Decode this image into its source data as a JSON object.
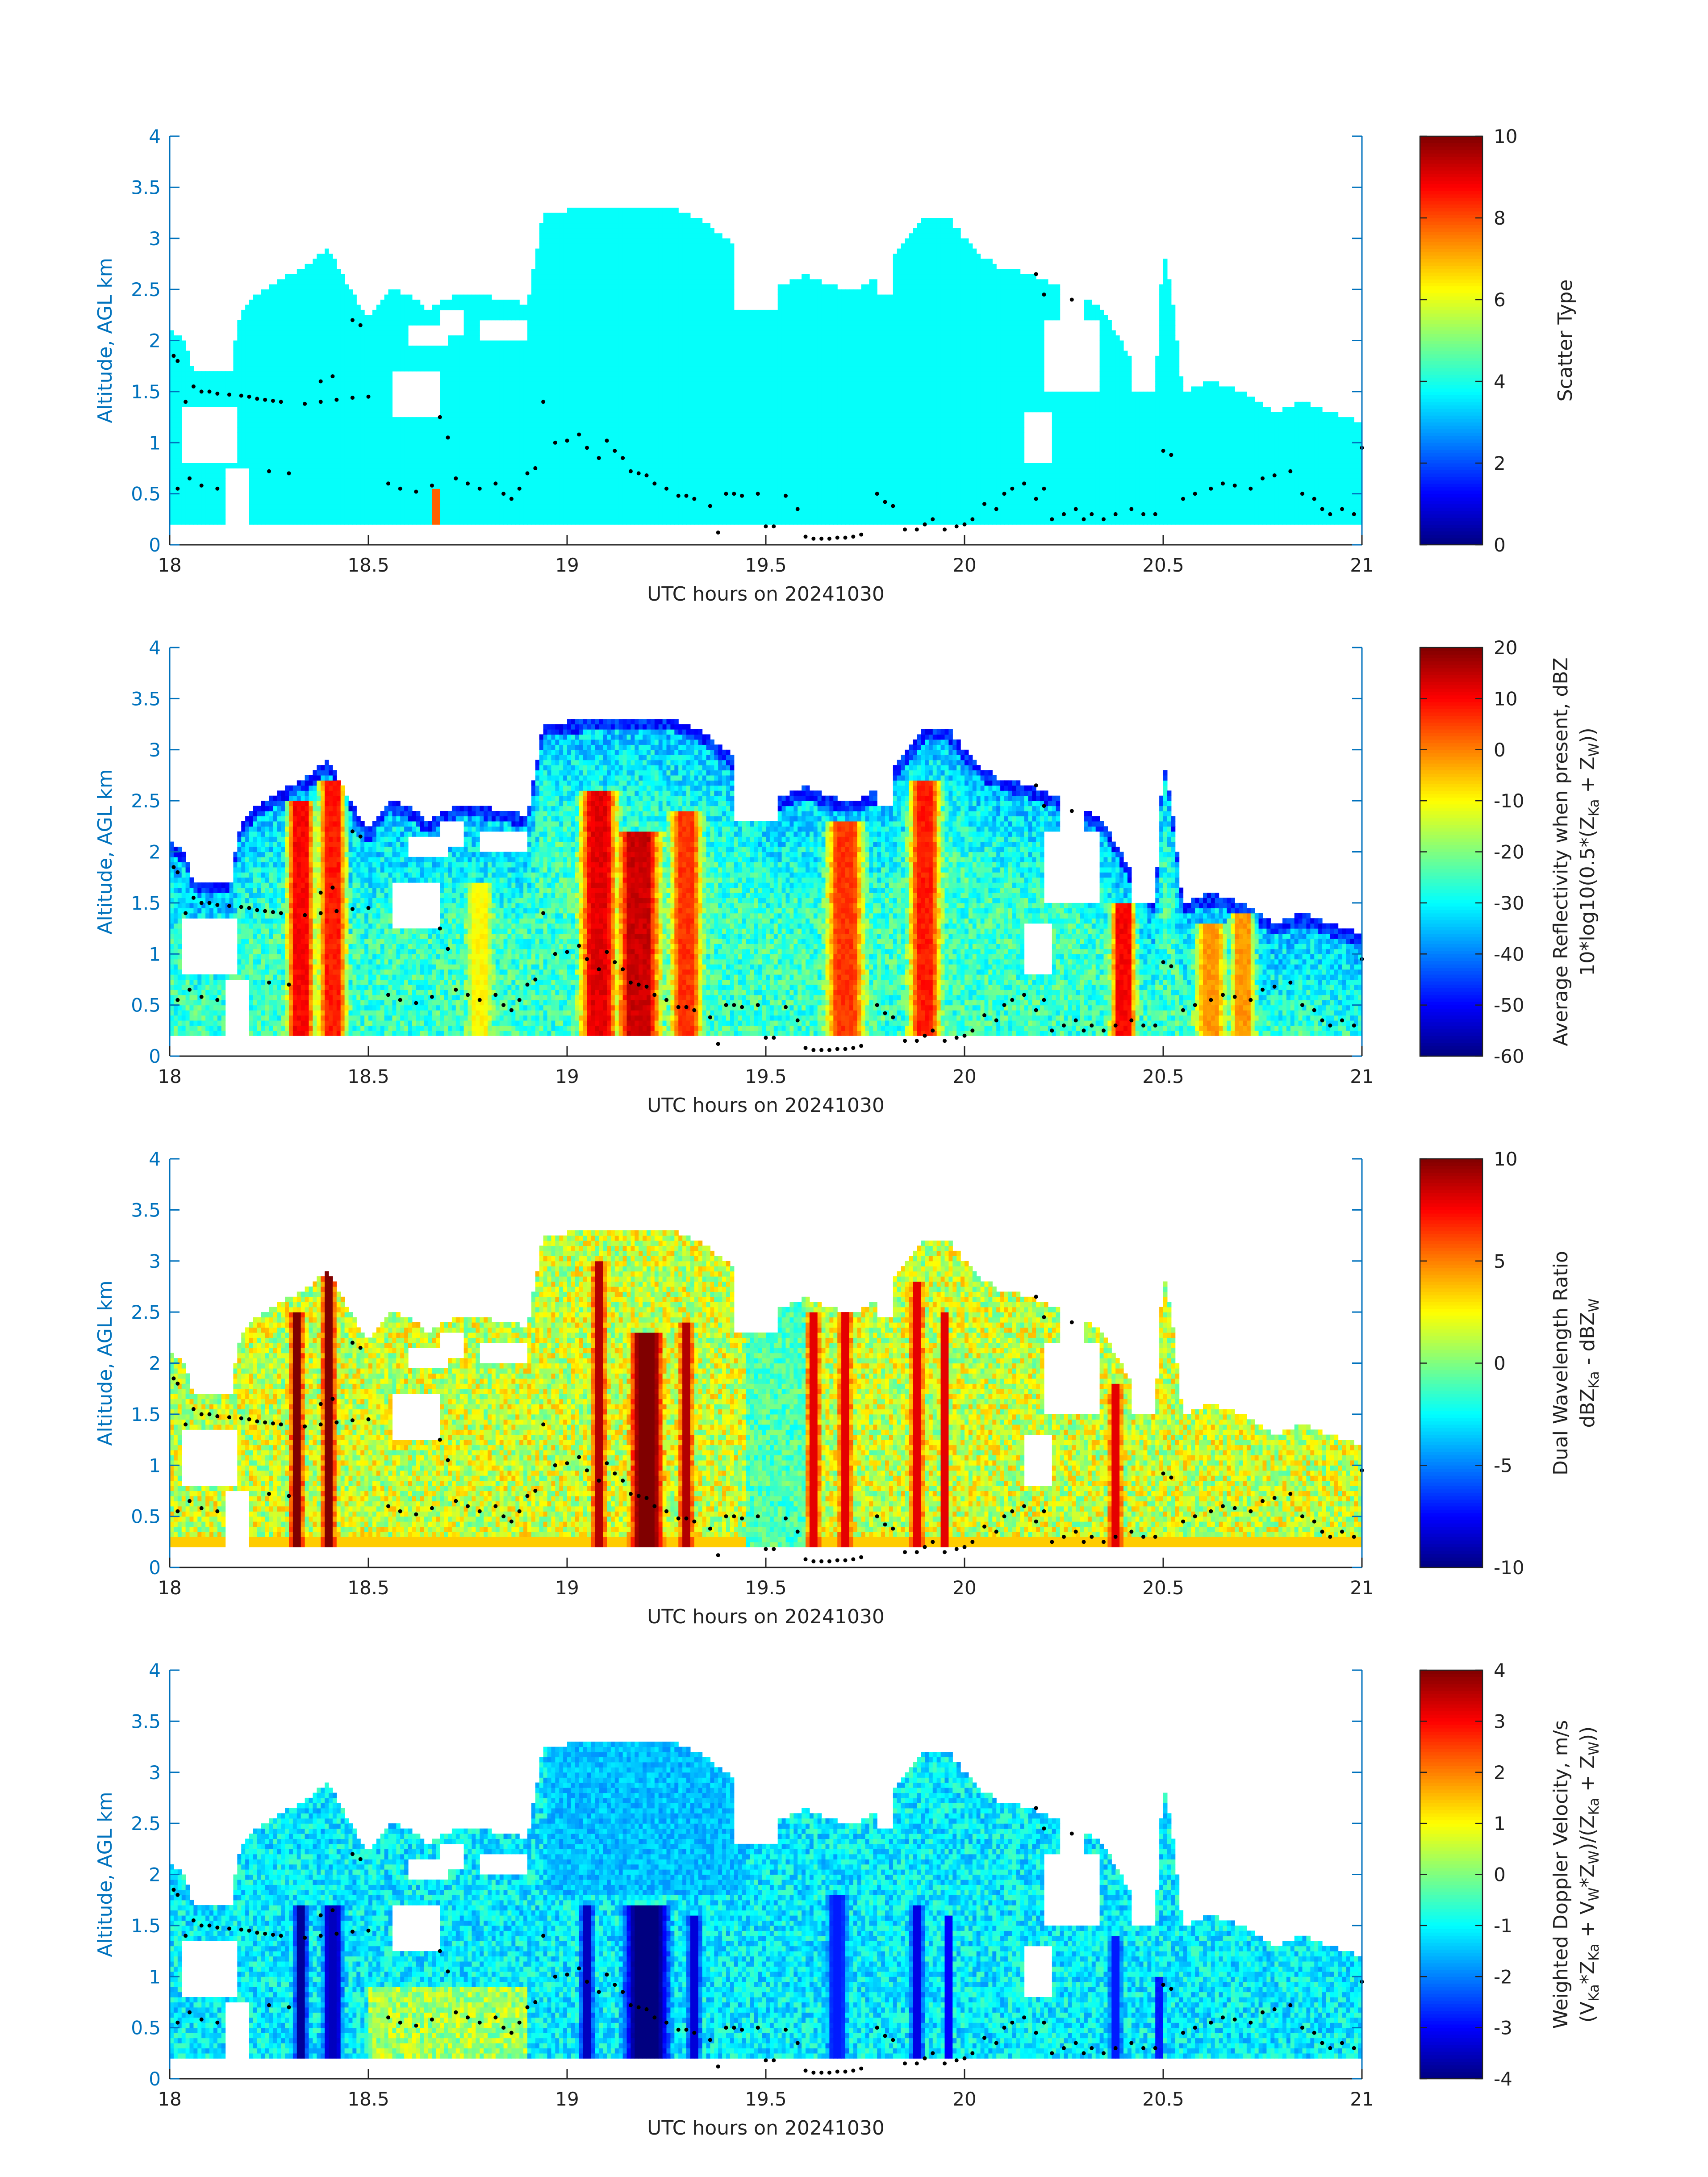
{
  "figure": {
    "grid": false,
    "axis_color": "#0072BD",
    "background": "#ffffff",
    "marker_color": "#000000",
    "cloud_base_dots": [
      [
        18.01,
        1.85
      ],
      [
        18.02,
        1.8
      ],
      [
        18.04,
        1.4
      ],
      [
        18.06,
        1.55
      ],
      [
        18.08,
        1.5
      ],
      [
        18.1,
        1.5
      ],
      [
        18.12,
        1.48
      ],
      [
        18.15,
        1.47
      ],
      [
        18.18,
        1.46
      ],
      [
        18.2,
        1.45
      ],
      [
        18.22,
        1.43
      ],
      [
        18.24,
        1.42
      ],
      [
        18.26,
        1.41
      ],
      [
        18.28,
        1.4
      ],
      [
        18.34,
        1.38
      ],
      [
        18.38,
        1.4
      ],
      [
        18.42,
        1.42
      ],
      [
        18.46,
        1.44
      ],
      [
        18.5,
        1.45
      ],
      [
        18.38,
        1.6
      ],
      [
        18.41,
        1.65
      ],
      [
        18.46,
        2.2
      ],
      [
        18.48,
        2.15
      ],
      [
        18.02,
        0.55
      ],
      [
        18.05,
        0.65
      ],
      [
        18.08,
        0.58
      ],
      [
        18.12,
        0.55
      ],
      [
        18.25,
        0.72
      ],
      [
        18.3,
        0.7
      ],
      [
        18.55,
        0.6
      ],
      [
        18.58,
        0.55
      ],
      [
        18.62,
        0.52
      ],
      [
        18.66,
        0.58
      ],
      [
        18.68,
        1.25
      ],
      [
        18.7,
        1.05
      ],
      [
        18.72,
        0.65
      ],
      [
        18.75,
        0.6
      ],
      [
        18.78,
        0.55
      ],
      [
        18.82,
        0.6
      ],
      [
        18.84,
        0.5
      ],
      [
        18.86,
        0.45
      ],
      [
        18.88,
        0.55
      ],
      [
        18.9,
        0.7
      ],
      [
        18.92,
        0.75
      ],
      [
        18.94,
        1.4
      ],
      [
        18.97,
        1.0
      ],
      [
        19.0,
        1.02
      ],
      [
        19.03,
        1.08
      ],
      [
        19.05,
        0.95
      ],
      [
        19.08,
        0.85
      ],
      [
        19.1,
        1.02
      ],
      [
        19.12,
        0.92
      ],
      [
        19.14,
        0.85
      ],
      [
        19.16,
        0.72
      ],
      [
        19.18,
        0.7
      ],
      [
        19.2,
        0.68
      ],
      [
        19.22,
        0.6
      ],
      [
        19.25,
        0.55
      ],
      [
        19.28,
        0.48
      ],
      [
        19.3,
        0.48
      ],
      [
        19.32,
        0.45
      ],
      [
        19.36,
        0.38
      ],
      [
        19.38,
        0.12
      ],
      [
        19.4,
        0.5
      ],
      [
        19.42,
        0.5
      ],
      [
        19.44,
        0.48
      ],
      [
        19.48,
        0.5
      ],
      [
        19.5,
        0.18
      ],
      [
        19.52,
        0.18
      ],
      [
        19.55,
        0.48
      ],
      [
        19.58,
        0.35
      ],
      [
        19.6,
        0.08
      ],
      [
        19.62,
        0.06
      ],
      [
        19.64,
        0.06
      ],
      [
        19.66,
        0.06
      ],
      [
        19.68,
        0.07
      ],
      [
        19.7,
        0.07
      ],
      [
        19.72,
        0.08
      ],
      [
        19.74,
        0.1
      ],
      [
        19.78,
        0.5
      ],
      [
        19.8,
        0.42
      ],
      [
        19.82,
        0.38
      ],
      [
        19.85,
        0.15
      ],
      [
        19.88,
        0.15
      ],
      [
        19.9,
        0.2
      ],
      [
        19.92,
        0.25
      ],
      [
        19.95,
        0.15
      ],
      [
        19.98,
        0.18
      ],
      [
        20.0,
        0.2
      ],
      [
        20.02,
        0.25
      ],
      [
        20.05,
        0.4
      ],
      [
        20.08,
        0.35
      ],
      [
        20.1,
        0.5
      ],
      [
        20.12,
        0.55
      ],
      [
        20.15,
        0.6
      ],
      [
        20.18,
        0.45
      ],
      [
        20.2,
        0.55
      ],
      [
        20.22,
        0.25
      ],
      [
        20.25,
        0.3
      ],
      [
        20.28,
        0.35
      ],
      [
        20.3,
        0.25
      ],
      [
        20.32,
        0.3
      ],
      [
        20.35,
        0.25
      ],
      [
        20.38,
        0.3
      ],
      [
        20.42,
        0.35
      ],
      [
        20.45,
        0.3
      ],
      [
        20.48,
        0.3
      ],
      [
        20.5,
        0.92
      ],
      [
        20.52,
        0.88
      ],
      [
        20.55,
        0.45
      ],
      [
        20.58,
        0.5
      ],
      [
        20.62,
        0.55
      ],
      [
        20.65,
        0.6
      ],
      [
        20.68,
        0.58
      ],
      [
        20.72,
        0.55
      ],
      [
        20.75,
        0.65
      ],
      [
        20.78,
        0.68
      ],
      [
        20.82,
        0.72
      ],
      [
        20.85,
        0.5
      ],
      [
        20.88,
        0.45
      ],
      [
        20.9,
        0.35
      ],
      [
        20.92,
        0.3
      ],
      [
        20.95,
        0.35
      ],
      [
        20.98,
        0.3
      ],
      [
        21.0,
        0.95
      ],
      [
        20.18,
        2.65
      ],
      [
        20.2,
        2.45
      ],
      [
        20.27,
        2.4
      ]
    ]
  },
  "chart_data": [
    {
      "type": "heatmap",
      "variable": "scatter_type",
      "xlabel": "UTC hours on 20241030",
      "ylabel": "Altitude, AGL km",
      "xlim": [
        18,
        21
      ],
      "ylim": [
        0,
        4
      ],
      "x_ticks": [
        "18",
        "18.5",
        "19",
        "19.5",
        "20",
        "20.5",
        "21"
      ],
      "y_ticks": [
        "0",
        "0.5",
        "1",
        "1.5",
        "2",
        "2.5",
        "3",
        "3.5",
        "4"
      ],
      "colorbar": {
        "label_lines": [
          "Scatter Type"
        ],
        "range": [
          0,
          10
        ],
        "ticks": [
          "0",
          "2",
          "4",
          "6",
          "8",
          "10"
        ]
      },
      "dominant_value": 3.8,
      "anomaly": {
        "x": 18.67,
        "value": 7.8
      }
    },
    {
      "type": "heatmap",
      "variable": "reflectivity",
      "xlabel": "UTC hours on 20241030",
      "ylabel": "Altitude, AGL km",
      "xlim": [
        18,
        21
      ],
      "ylim": [
        0,
        4
      ],
      "x_ticks": [
        "18",
        "18.5",
        "19",
        "19.5",
        "20",
        "20.5",
        "21"
      ],
      "y_ticks": [
        "0",
        "0.5",
        "1",
        "1.5",
        "2",
        "2.5",
        "3",
        "3.5",
        "4"
      ],
      "colorbar": {
        "label_lines": [
          "Average Reflectivity when present, dBZ",
          "10*log10(0.5*(Z",
          "Ka",
          " + Z",
          "W",
          "))"
        ],
        "range": [
          -60,
          20
        ],
        "ticks": [
          "-60",
          "-50",
          "-40",
          "-30",
          "-20",
          "-10",
          "0",
          "10",
          "20"
        ]
      },
      "cores": [
        {
          "x": 18.33,
          "width": 0.045,
          "peak": 10,
          "top": 2.5
        },
        {
          "x": 18.41,
          "width": 0.045,
          "peak": 8,
          "top": 2.7
        },
        {
          "x": 18.78,
          "width": 0.04,
          "peak": -10,
          "top": 1.7
        },
        {
          "x": 19.08,
          "width": 0.06,
          "peak": 12,
          "top": 2.6
        },
        {
          "x": 19.18,
          "width": 0.07,
          "peak": 14,
          "top": 2.2
        },
        {
          "x": 19.3,
          "width": 0.05,
          "peak": 6,
          "top": 2.4
        },
        {
          "x": 19.7,
          "width": 0.06,
          "peak": 6,
          "top": 2.3
        },
        {
          "x": 19.9,
          "width": 0.05,
          "peak": 8,
          "top": 2.7
        },
        {
          "x": 20.4,
          "width": 0.04,
          "peak": 10,
          "top": 1.5
        },
        {
          "x": 20.62,
          "width": 0.05,
          "peak": -2,
          "top": 1.3
        },
        {
          "x": 20.7,
          "width": 0.04,
          "peak": -2,
          "top": 1.4
        }
      ]
    },
    {
      "type": "heatmap",
      "variable": "dual_wavelength_ratio",
      "xlabel": "UTC hours on 20241030",
      "ylabel": "Altitude, AGL km",
      "xlim": [
        18,
        21
      ],
      "ylim": [
        0,
        4
      ],
      "x_ticks": [
        "18",
        "18.5",
        "19",
        "19.5",
        "20",
        "20.5",
        "21"
      ],
      "y_ticks": [
        "0",
        "0.5",
        "1",
        "1.5",
        "2",
        "2.5",
        "3",
        "3.5",
        "4"
      ],
      "colorbar": {
        "label_lines": [
          "Dual Wavelength Ratio",
          "dBZ",
          "Ka",
          " - dBZ",
          "W"
        ],
        "range": [
          -10,
          10
        ],
        "ticks": [
          "-10",
          "-5",
          "0",
          "5",
          "10"
        ]
      },
      "cores": [
        {
          "x": 18.32,
          "width": 0.02,
          "peak": 10,
          "top": 2.5
        },
        {
          "x": 18.4,
          "width": 0.02,
          "peak": 10,
          "top": 2.9
        },
        {
          "x": 19.08,
          "width": 0.02,
          "peak": 9,
          "top": 3.0
        },
        {
          "x": 19.2,
          "width": 0.05,
          "peak": 10,
          "top": 2.3
        },
        {
          "x": 19.3,
          "width": 0.02,
          "peak": 9,
          "top": 2.4
        },
        {
          "x": 19.62,
          "width": 0.02,
          "peak": 8,
          "top": 2.5
        },
        {
          "x": 19.7,
          "width": 0.02,
          "peak": 8,
          "top": 2.5
        },
        {
          "x": 19.88,
          "width": 0.02,
          "peak": 8,
          "top": 2.8
        },
        {
          "x": 19.95,
          "width": 0.015,
          "peak": 8,
          "top": 2.5
        },
        {
          "x": 20.38,
          "width": 0.02,
          "peak": 8,
          "top": 1.8
        }
      ]
    },
    {
      "type": "heatmap",
      "variable": "doppler_velocity",
      "xlabel": "UTC hours on 20241030",
      "ylabel": "Altitude, AGL km",
      "xlim": [
        18,
        21
      ],
      "ylim": [
        0,
        4
      ],
      "x_ticks": [
        "18",
        "18.5",
        "19",
        "19.5",
        "20",
        "20.5",
        "21"
      ],
      "y_ticks": [
        "0",
        "0.5",
        "1",
        "1.5",
        "2",
        "2.5",
        "3",
        "3.5",
        "4"
      ],
      "colorbar": {
        "label_lines": [
          "Weighted Doppler Velocity, m/s",
          "(V",
          "Ka",
          "*Z",
          "Ka",
          " + V",
          "W",
          "*Z",
          "W",
          ")/(Z",
          "Ka",
          " + Z",
          "W",
          "))"
        ],
        "range": [
          -4,
          4
        ],
        "ticks": [
          "-4",
          "-3",
          "-2",
          "-1",
          "0",
          "1",
          "2",
          "3",
          "4"
        ]
      },
      "cores": [
        {
          "x": 18.33,
          "width": 0.02,
          "peak": -3.8,
          "top": 1.7
        },
        {
          "x": 18.41,
          "width": 0.03,
          "peak": -3.5,
          "top": 1.7
        },
        {
          "x": 19.05,
          "width": 0.02,
          "peak": -3.5,
          "top": 1.7
        },
        {
          "x": 19.2,
          "width": 0.07,
          "peak": -4,
          "top": 1.7
        },
        {
          "x": 19.32,
          "width": 0.02,
          "peak": -3.3,
          "top": 1.6
        },
        {
          "x": 19.68,
          "width": 0.03,
          "peak": -2.8,
          "top": 1.8
        },
        {
          "x": 19.88,
          "width": 0.02,
          "peak": -3.2,
          "top": 1.7
        },
        {
          "x": 19.96,
          "width": 0.015,
          "peak": -3.0,
          "top": 1.6
        },
        {
          "x": 20.38,
          "width": 0.02,
          "peak": -2.8,
          "top": 1.4
        },
        {
          "x": 20.49,
          "width": 0.01,
          "peak": -3.0,
          "top": 1.0
        }
      ]
    }
  ]
}
